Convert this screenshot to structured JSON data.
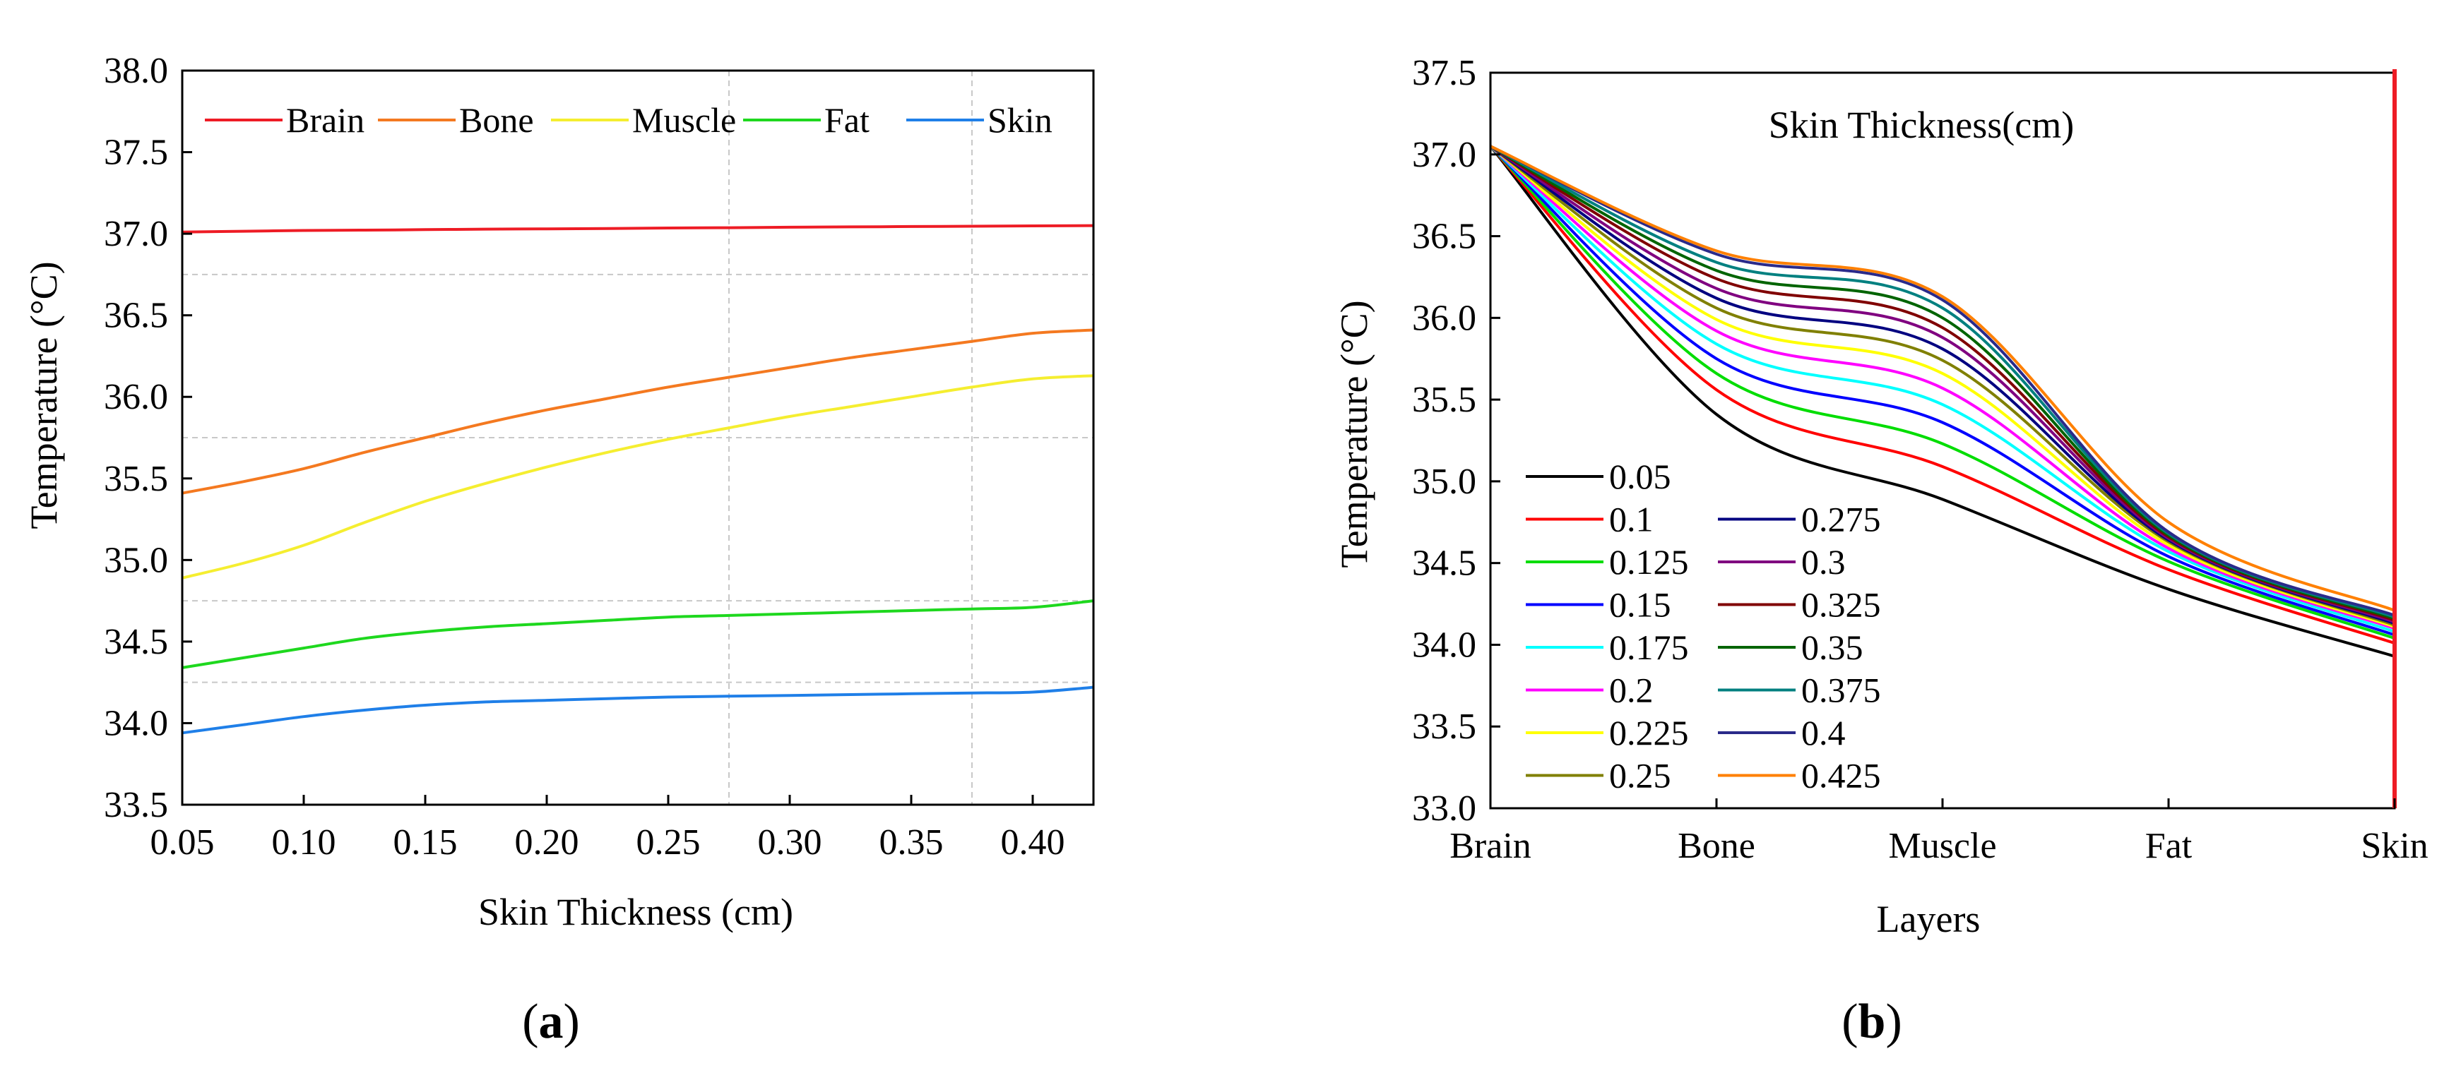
{
  "figure": {
    "panels": [
      {
        "label_open": "(",
        "label_letter": "a",
        "label_close": ")"
      },
      {
        "label_open": "(",
        "label_letter": "b",
        "label_close": ")"
      }
    ]
  },
  "chart_data": [
    {
      "type": "line",
      "panel": "a",
      "title": "",
      "xlabel": "Skin Thickness (cm)",
      "ylabel": "Temperature (°C)",
      "xlim": [
        0.05,
        0.425
      ],
      "ylim": [
        33.5,
        38.0
      ],
      "xticks": [
        0.05,
        0.1,
        0.15,
        0.2,
        0.25,
        0.3,
        0.35,
        0.4
      ],
      "xtick_labels": [
        "0.05",
        "0.10",
        "0.15",
        "0.20",
        "0.25",
        "0.30",
        "0.35",
        "0.40"
      ],
      "yticks": [
        33.5,
        34.0,
        34.5,
        35.0,
        35.5,
        36.0,
        36.5,
        37.0,
        37.5,
        38.0
      ],
      "ytick_labels": [
        "33.5",
        "34.0",
        "34.5",
        "35.0",
        "35.5",
        "36.0",
        "36.5",
        "37.0",
        "37.5",
        "38.0"
      ],
      "legend_position": "top",
      "x": [
        0.05,
        0.075,
        0.1,
        0.125,
        0.15,
        0.175,
        0.2,
        0.225,
        0.25,
        0.275,
        0.3,
        0.325,
        0.35,
        0.375,
        0.4,
        0.425
      ],
      "series": [
        {
          "name": "Brain",
          "color": "#ee1c25",
          "values": [
            37.01,
            37.015,
            37.02,
            37.022,
            37.025,
            37.028,
            37.03,
            37.032,
            37.035,
            37.037,
            37.04,
            37.042,
            37.044,
            37.046,
            37.048,
            37.05
          ]
        },
        {
          "name": "Bone",
          "color": "#f47920",
          "values": [
            35.41,
            35.48,
            35.56,
            35.66,
            35.75,
            35.84,
            35.92,
            35.99,
            36.06,
            36.12,
            36.18,
            36.24,
            36.29,
            36.34,
            36.39,
            36.41
          ]
        },
        {
          "name": "Muscle",
          "color": "#f5ee30",
          "values": [
            34.89,
            34.98,
            35.09,
            35.23,
            35.36,
            35.47,
            35.57,
            35.66,
            35.74,
            35.81,
            35.88,
            35.94,
            36.0,
            36.06,
            36.11,
            36.13
          ]
        },
        {
          "name": "Fat",
          "color": "#1ed81e",
          "values": [
            34.34,
            34.4,
            34.46,
            34.52,
            34.56,
            34.59,
            34.61,
            34.63,
            34.65,
            34.66,
            34.67,
            34.68,
            34.69,
            34.7,
            34.71,
            34.75
          ]
        },
        {
          "name": "Skin",
          "color": "#1f7fe8",
          "values": [
            33.94,
            33.99,
            34.04,
            34.08,
            34.11,
            34.13,
            34.14,
            34.15,
            34.16,
            34.165,
            34.17,
            34.175,
            34.18,
            34.185,
            34.19,
            34.22
          ]
        }
      ]
    },
    {
      "type": "line",
      "panel": "b",
      "title": "",
      "annotation": "Skin Thickness(cm)",
      "xlabel": "Layers",
      "ylabel": "Temperature (°C)",
      "categories": [
        "Brain",
        "Bone",
        "Muscle",
        "Fat",
        "Skin"
      ],
      "ylim": [
        33.0,
        37.5
      ],
      "yticks": [
        33.0,
        33.5,
        34.0,
        34.5,
        35.0,
        35.5,
        36.0,
        36.5,
        37.0,
        37.5
      ],
      "ytick_labels": [
        "33.0",
        "33.5",
        "34.0",
        "34.5",
        "35.0",
        "35.5",
        "36.0",
        "36.5",
        "37.0",
        "37.5"
      ],
      "legend_position": "bottom-left",
      "series": [
        {
          "name": "0.05",
          "color": "#000000",
          "values": [
            37.05,
            35.41,
            34.89,
            34.34,
            33.93
          ]
        },
        {
          "name": "0.1",
          "color": "#ff0000",
          "values": [
            37.05,
            35.56,
            35.09,
            34.46,
            34.01
          ]
        },
        {
          "name": "0.125",
          "color": "#00dd00",
          "values": [
            37.05,
            35.66,
            35.23,
            34.51,
            34.04
          ]
        },
        {
          "name": "0.15",
          "color": "#0000ff",
          "values": [
            37.05,
            35.75,
            35.36,
            34.54,
            34.06
          ]
        },
        {
          "name": "0.175",
          "color": "#00ffff",
          "values": [
            37.05,
            35.84,
            35.47,
            34.57,
            34.08
          ]
        },
        {
          "name": "0.2",
          "color": "#ff00ff",
          "values": [
            37.05,
            35.92,
            35.57,
            34.59,
            34.1
          ]
        },
        {
          "name": "0.225",
          "color": "#ffff00",
          "values": [
            37.05,
            35.99,
            35.66,
            34.61,
            34.11
          ]
        },
        {
          "name": "0.25",
          "color": "#808000",
          "values": [
            37.05,
            36.06,
            35.74,
            34.63,
            34.12
          ]
        },
        {
          "name": "0.275",
          "color": "#000080",
          "values": [
            37.05,
            36.12,
            35.81,
            34.64,
            34.13
          ]
        },
        {
          "name": "0.3",
          "color": "#800080",
          "values": [
            37.05,
            36.18,
            35.88,
            34.65,
            34.14
          ]
        },
        {
          "name": "0.325",
          "color": "#800000",
          "values": [
            37.05,
            36.24,
            35.94,
            34.66,
            34.15
          ]
        },
        {
          "name": "0.35",
          "color": "#006400",
          "values": [
            37.05,
            36.29,
            36.0,
            34.67,
            34.16
          ]
        },
        {
          "name": "0.375",
          "color": "#008080",
          "values": [
            37.05,
            36.34,
            36.06,
            34.68,
            34.17
          ]
        },
        {
          "name": "0.4",
          "color": "#2a2a8a",
          "values": [
            37.05,
            36.39,
            36.11,
            34.69,
            34.18
          ]
        },
        {
          "name": "0.425",
          "color": "#ff8000",
          "values": [
            37.05,
            36.41,
            36.13,
            34.75,
            34.21
          ]
        }
      ]
    }
  ]
}
